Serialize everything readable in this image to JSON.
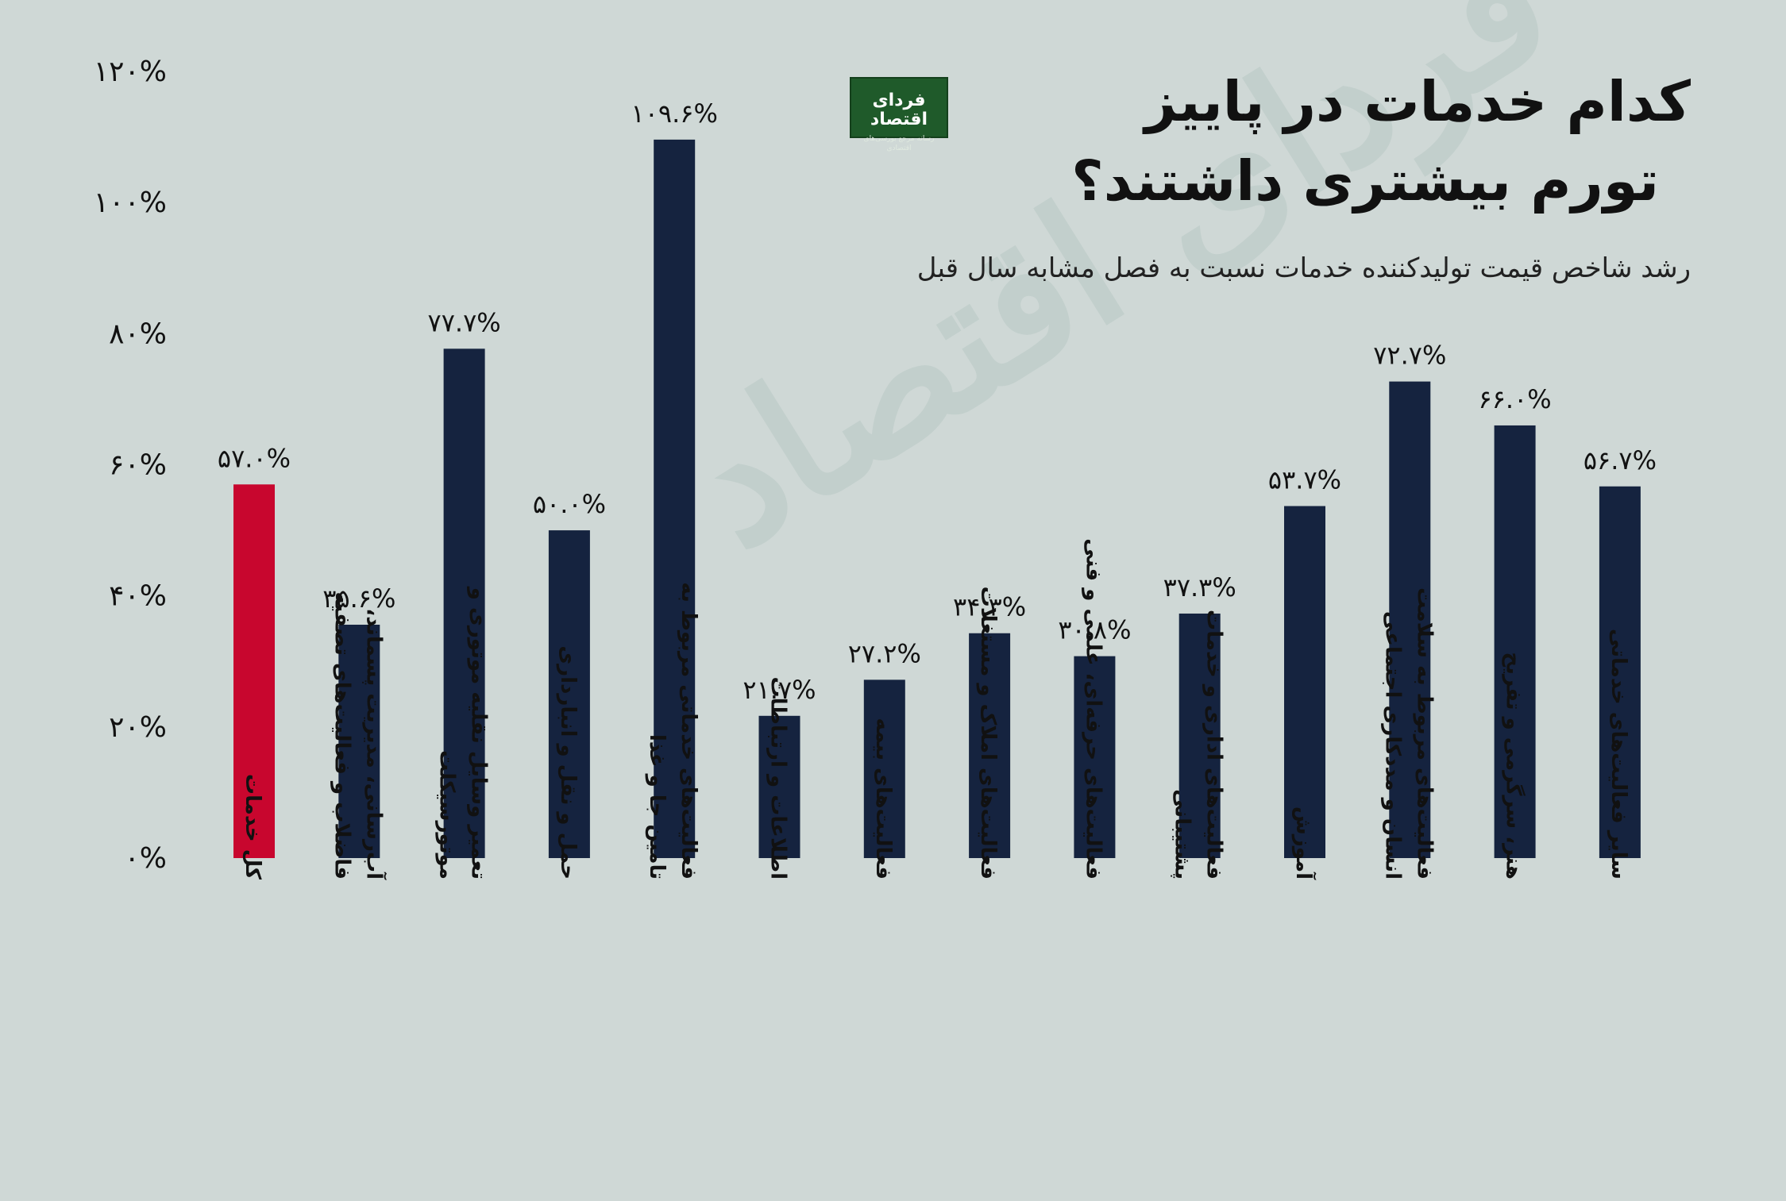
{
  "header": {
    "title_line1": "کدام خدمات در پاییز",
    "title_line2": "تورم بیشتری داشتند؟",
    "subtitle": "رشد شاخص قیمت تولیدکننده خدمات نسبت به فصل مشابه سال قبل"
  },
  "logo": {
    "name": "فردای اقتصاد",
    "tagline": "رسانه مرجع بورسی‌های اقتصادی"
  },
  "watermark": "فردای اقتصاد",
  "colors": {
    "background": "#cfd8d6",
    "bar_default": "#15233f",
    "bar_highlight": "#c8062e",
    "text": "#111111"
  },
  "chart_data": {
    "type": "bar",
    "title": "کدام خدمات در پاییز تورم بیشتری داشتند؟",
    "subtitle": "رشد شاخص قیمت تولیدکننده خدمات نسبت به فصل مشابه سال قبل",
    "ylim": [
      0,
      120
    ],
    "yticks": [
      0,
      20,
      40,
      60,
      80,
      100,
      120
    ],
    "ytick_labels": [
      "۰%",
      "۲۰%",
      "۴۰%",
      "۶۰%",
      "۸۰%",
      "۱۰۰%",
      "۱۲۰%"
    ],
    "grid": false,
    "legend": "none",
    "categories": [
      "کل خدمات",
      "آب‌رسانی، مدیریت پسماند، فاضلاب و فعالیت‌های تصفیه",
      "تعمیر وسایل نقلیه موتوری و موتورسیکلت",
      "حمل و نقل و انبارداری",
      "فعالیت‌های خدماتی مربوط به تامین جا و غذا",
      "اطلاعات و ارتباطات",
      "فعالیت‌های بیمه",
      "فعالیت‌های املاک و مستغلات",
      "فعالیت‌های حرفه‌ای، علمی و فنی",
      "فعالیت‌های اداری و خدمات پشتیبانی",
      "آموزش",
      "فعالیت‌های مربوط به سلامت انسان و مددکاری اجتماعی",
      "هنر، سرگرمی و تفریح",
      "سایر فعالیت‌های خدماتی"
    ],
    "category_lines": [
      [
        "کل خدمات"
      ],
      [
        "آب‌رسانی، مدیریت پسماند،",
        "فاضلاب و فعالیت‌های تصفیه"
      ],
      [
        "تعمیر وسایل نقلیه موتوری و",
        "موتورسیکلت"
      ],
      [
        "حمل و نقل و انبارداری"
      ],
      [
        "فعالیت‌های خدماتی مربوط به",
        "تامین جا و غذا"
      ],
      [
        "اطلاعات و ارتباطات"
      ],
      [
        "فعالیت‌های بیمه"
      ],
      [
        "فعالیت‌های املاک و مستغلات"
      ],
      [
        "فعالیت‌های حرفه‌ای، علمی و فنی"
      ],
      [
        "فعالیت‌های اداری و خدمات",
        "پشتیبانی"
      ],
      [
        "آموزش"
      ],
      [
        "فعالیت‌های مربوط به سلامت",
        "انسان و مددکاری اجتماعی"
      ],
      [
        "هنر، سرگرمی و تفریح"
      ],
      [
        "سایر فعالیت‌های خدماتی"
      ]
    ],
    "values": [
      57.0,
      35.6,
      77.7,
      50.0,
      109.6,
      21.7,
      27.2,
      34.3,
      30.8,
      37.3,
      53.7,
      72.7,
      66.0,
      56.7
    ],
    "value_labels": [
      "۵۷.۰%",
      "۳۵.۶%",
      "۷۷.۷%",
      "۵۰.۰%",
      "۱۰۹.۶%",
      "۲۱.۷%",
      "۲۷.۲%",
      "۳۴.۳%",
      "۳۰.۸%",
      "۳۷.۳%",
      "۵۳.۷%",
      "۷۲.۷%",
      "۶۶.۰%",
      "۵۶.۷%"
    ],
    "highlight_index": 0
  }
}
